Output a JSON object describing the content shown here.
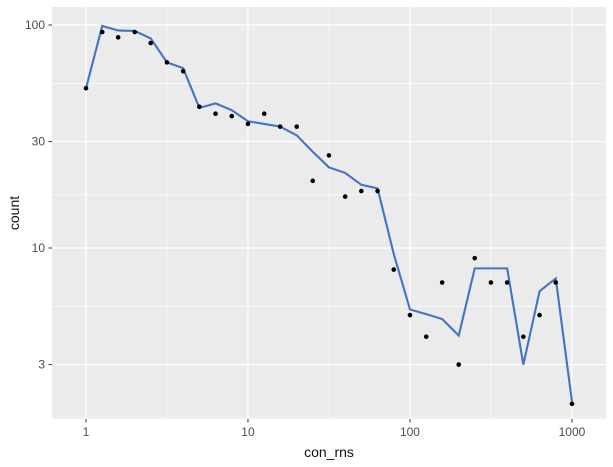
{
  "chart_data": {
    "type": "scatter",
    "title": "",
    "xlabel": "con_rns",
    "ylabel": "count",
    "x_scale": "log10",
    "y_scale": "log10",
    "xlim": [
      0.617,
      1622
    ],
    "ylim": [
      1.71,
      120.4
    ],
    "x_ticks": [
      1,
      10,
      100,
      1000
    ],
    "y_ticks": [
      3,
      10,
      30,
      100
    ],
    "x_minor_gridlines": [
      3.162,
      31.62,
      316.2
    ],
    "y_minor_gridlines": [
      1.732,
      5.477,
      17.32,
      54.77
    ],
    "grid": "on",
    "legend": "none",
    "x": [
      1,
      1.26,
      1.58,
      2,
      2.51,
      3.16,
      3.98,
      5.01,
      6.31,
      7.94,
      10,
      12.6,
      15.8,
      20,
      25.1,
      31.6,
      39.8,
      50.1,
      63.1,
      79.4,
      100,
      126,
      158,
      200,
      251,
      316,
      398,
      501,
      631,
      794,
      1000
    ],
    "series": [
      {
        "name": "points",
        "geom": "point",
        "values": [
          52,
          93,
          88,
          93,
          83,
          68,
          62,
          43,
          40,
          39,
          36,
          40,
          35,
          35,
          20,
          26,
          17,
          18,
          18,
          8,
          5,
          4,
          7,
          3,
          9,
          7,
          7,
          4,
          5,
          7,
          2
        ]
      },
      {
        "name": "line",
        "geom": "line",
        "values": [
          52,
          99,
          94.5,
          94,
          87,
          68,
          64,
          42.5,
          44.5,
          41.5,
          37,
          36,
          35,
          32,
          27,
          23,
          21.7,
          19.2,
          18.5,
          9.4,
          5.3,
          5.05,
          4.8,
          4.05,
          8.1,
          8.1,
          8.1,
          3,
          6.4,
          7.3,
          2.05
        ]
      }
    ],
    "colors": {
      "panel_background": "#EBEBEB",
      "gridline": "#FFFFFF",
      "point": "#000000",
      "line": "#4472C4",
      "tick_label": "#4D4D4D",
      "axis_title": "#111111",
      "tick_mark": "#333333"
    }
  }
}
